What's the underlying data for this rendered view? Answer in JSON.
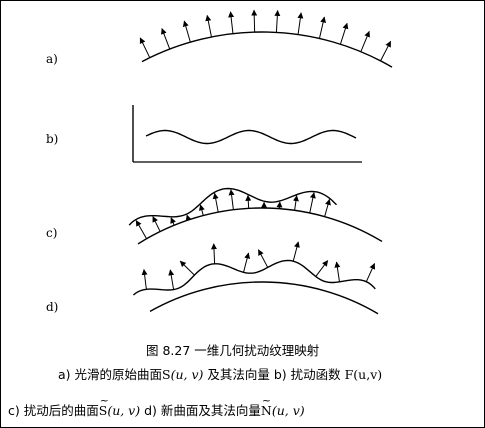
{
  "panels": [
    {
      "id": "a",
      "label": "a)"
    },
    {
      "id": "b",
      "label": "b)"
    },
    {
      "id": "c",
      "label": "c)"
    },
    {
      "id": "d",
      "label": "d)"
    }
  ],
  "caption": {
    "title": "图 8.27  一维几何扰动纹理映射",
    "line2_a": "a)  光滑的原始曲面",
    "line2_S": "S",
    "line2_Sargs": "(u, v)",
    "line2_rest": " 及其法向量  b)  扰动函数 ",
    "line2_F": "F(u,v)",
    "line3_c": "c)  扰动后的曲面",
    "line3_S": "S",
    "line3_Sargs": "(u, v)",
    "line3_d": "   d)  新曲面及其法向量",
    "line3_N": "N",
    "line3_Nargs": "(u, v)"
  }
}
